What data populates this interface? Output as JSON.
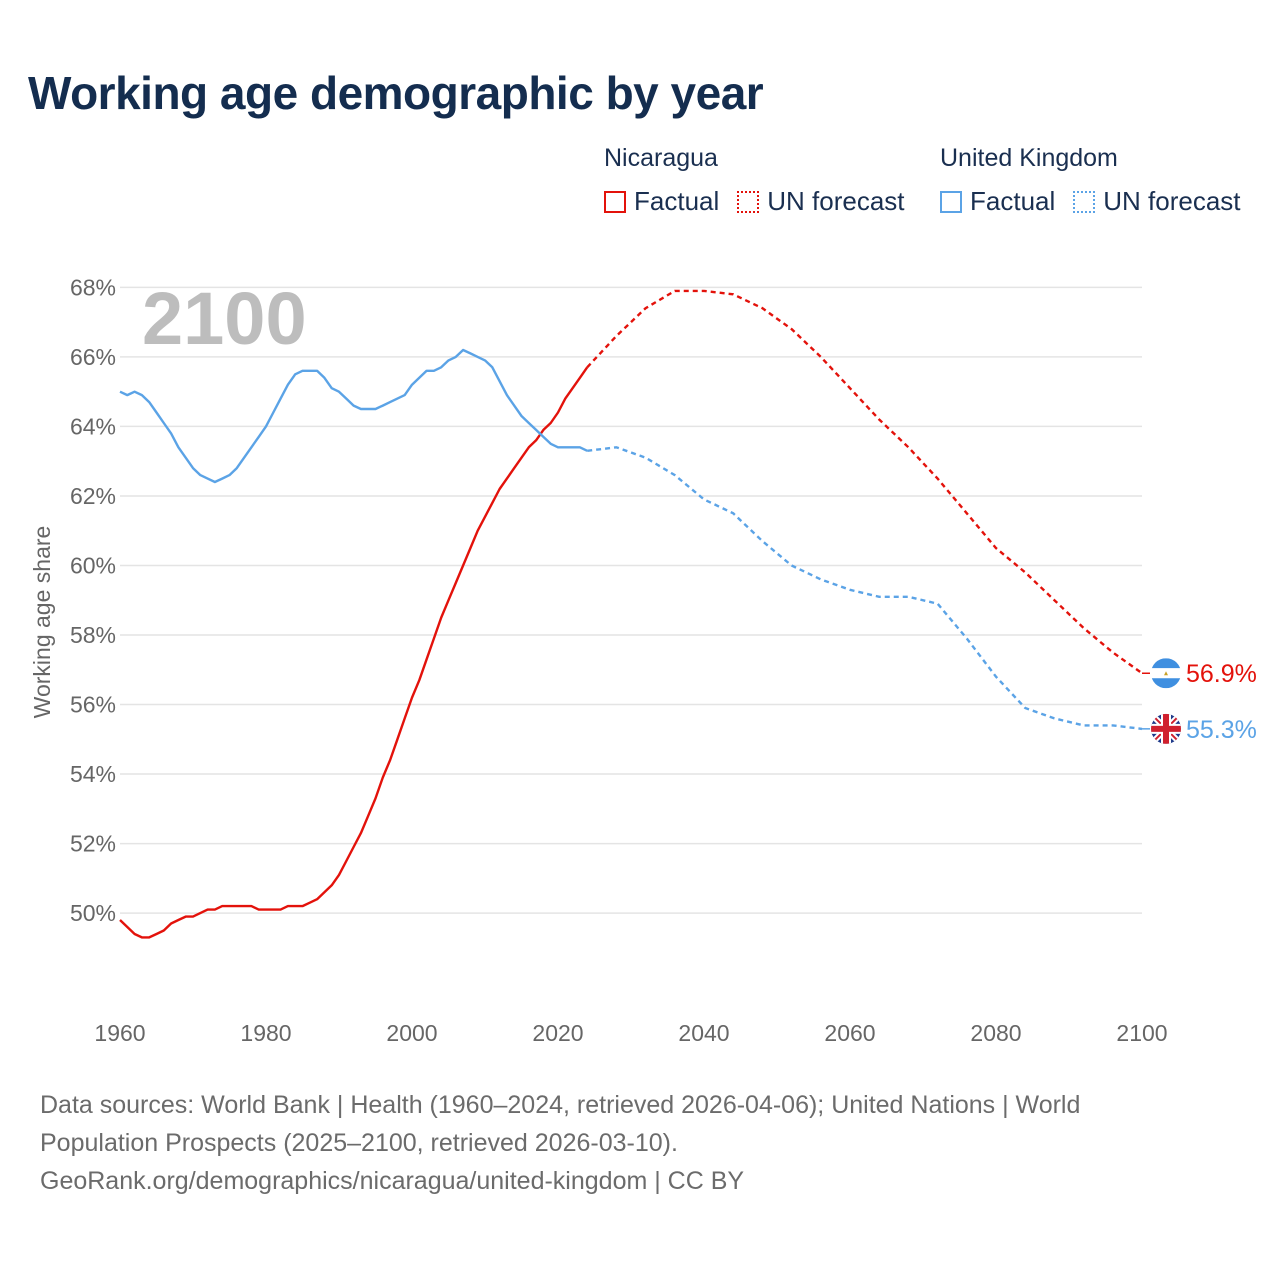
{
  "title": "Working age demographic by year",
  "legend": {
    "groups": [
      {
        "name": "Nicaragua",
        "factual_label": "Factual",
        "forecast_label": "UN forecast"
      },
      {
        "name": "United Kingdom",
        "factual_label": "Factual",
        "forecast_label": "UN forecast"
      }
    ]
  },
  "footer": {
    "line1": "Data sources: World Bank | Health (1960–2024, retrieved 2026-04-06); United Nations | World",
    "line2": "Population Prospects (2025–2100, retrieved 2026-03-10).",
    "line3": "GeoRank.org/demographics/nicaragua/united-kingdom | CC BY"
  },
  "colors": {
    "nicaragua": "#e3120b",
    "uk": "#5ba3e6",
    "grid": "#e4e4e4",
    "year_watermark": "#bdbdbd",
    "axis_text": "#666666"
  },
  "chart_data": {
    "type": "line",
    "year_label": "2100",
    "ylabel": "Working age share",
    "xlim": [
      1960,
      2100
    ],
    "ylim": [
      47.5,
      68.5
    ],
    "x_ticks": [
      1960,
      1980,
      2000,
      2020,
      2040,
      2060,
      2080,
      2100
    ],
    "x_tick_labels": [
      "1960",
      "1980",
      "2000",
      "2020",
      "2040",
      "2060",
      "2080",
      "2100"
    ],
    "y_ticks": [
      50,
      52,
      54,
      56,
      58,
      60,
      62,
      64,
      66,
      68
    ],
    "y_tick_labels": [
      "50%",
      "52%",
      "54%",
      "56%",
      "58%",
      "60%",
      "62%",
      "64%",
      "66%",
      "68%"
    ],
    "series": [
      {
        "name": "Nicaragua",
        "color": "#e3120b",
        "end_label": "56.9%",
        "flag": "nicaragua-flag-icon",
        "factual": {
          "x": [
            1960,
            1961,
            1962,
            1963,
            1964,
            1965,
            1966,
            1967,
            1968,
            1969,
            1970,
            1971,
            1972,
            1973,
            1974,
            1975,
            1976,
            1977,
            1978,
            1979,
            1980,
            1981,
            1982,
            1983,
            1984,
            1985,
            1986,
            1987,
            1988,
            1989,
            1990,
            1991,
            1992,
            1993,
            1994,
            1995,
            1996,
            1997,
            1998,
            1999,
            2000,
            2001,
            2002,
            2003,
            2004,
            2005,
            2006,
            2007,
            2008,
            2009,
            2010,
            2011,
            2012,
            2013,
            2014,
            2015,
            2016,
            2017,
            2018,
            2019,
            2020,
            2021,
            2022,
            2023,
            2024
          ],
          "y": [
            49.8,
            49.6,
            49.4,
            49.3,
            49.3,
            49.4,
            49.5,
            49.7,
            49.8,
            49.9,
            49.9,
            50.0,
            50.1,
            50.1,
            50.2,
            50.2,
            50.2,
            50.2,
            50.2,
            50.1,
            50.1,
            50.1,
            50.1,
            50.2,
            50.2,
            50.2,
            50.3,
            50.4,
            50.6,
            50.8,
            51.1,
            51.5,
            51.9,
            52.3,
            52.8,
            53.3,
            53.9,
            54.4,
            55.0,
            55.6,
            56.2,
            56.7,
            57.3,
            57.9,
            58.5,
            59.0,
            59.5,
            60.0,
            60.5,
            61.0,
            61.4,
            61.8,
            62.2,
            62.5,
            62.8,
            63.1,
            63.4,
            63.6,
            63.9,
            64.1,
            64.4,
            64.8,
            65.1,
            65.4,
            65.7
          ]
        },
        "forecast": {
          "x": [
            2024,
            2028,
            2032,
            2036,
            2040,
            2044,
            2048,
            2052,
            2056,
            2060,
            2064,
            2068,
            2072,
            2076,
            2080,
            2084,
            2088,
            2092,
            2096,
            2100
          ],
          "y": [
            65.7,
            66.6,
            67.4,
            67.9,
            67.9,
            67.8,
            67.4,
            66.8,
            66.0,
            65.1,
            64.2,
            63.4,
            62.5,
            61.5,
            60.5,
            59.8,
            59.0,
            58.2,
            57.5,
            56.9
          ]
        }
      },
      {
        "name": "United Kingdom",
        "color": "#5ba3e6",
        "end_label": "55.3%",
        "flag": "united-kingdom-flag-icon",
        "factual": {
          "x": [
            1960,
            1961,
            1962,
            1963,
            1964,
            1965,
            1966,
            1967,
            1968,
            1969,
            1970,
            1971,
            1972,
            1973,
            1974,
            1975,
            1976,
            1977,
            1978,
            1979,
            1980,
            1981,
            1982,
            1983,
            1984,
            1985,
            1986,
            1987,
            1988,
            1989,
            1990,
            1991,
            1992,
            1993,
            1994,
            1995,
            1996,
            1997,
            1998,
            1999,
            2000,
            2001,
            2002,
            2003,
            2004,
            2005,
            2006,
            2007,
            2008,
            2009,
            2010,
            2011,
            2012,
            2013,
            2014,
            2015,
            2016,
            2017,
            2018,
            2019,
            2020,
            2021,
            2022,
            2023,
            2024
          ],
          "y": [
            65.0,
            64.9,
            65.0,
            64.9,
            64.7,
            64.4,
            64.1,
            63.8,
            63.4,
            63.1,
            62.8,
            62.6,
            62.5,
            62.4,
            62.5,
            62.6,
            62.8,
            63.1,
            63.4,
            63.7,
            64.0,
            64.4,
            64.8,
            65.2,
            65.5,
            65.6,
            65.6,
            65.6,
            65.4,
            65.1,
            65.0,
            64.8,
            64.6,
            64.5,
            64.5,
            64.5,
            64.6,
            64.7,
            64.8,
            64.9,
            65.2,
            65.4,
            65.6,
            65.6,
            65.7,
            65.9,
            66.0,
            66.2,
            66.1,
            66.0,
            65.9,
            65.7,
            65.3,
            64.9,
            64.6,
            64.3,
            64.1,
            63.9,
            63.7,
            63.5,
            63.4,
            63.4,
            63.4,
            63.4,
            63.3
          ]
        },
        "forecast": {
          "x": [
            2024,
            2028,
            2032,
            2036,
            2040,
            2044,
            2048,
            2052,
            2056,
            2060,
            2064,
            2068,
            2072,
            2076,
            2080,
            2084,
            2088,
            2092,
            2096,
            2100
          ],
          "y": [
            63.3,
            63.4,
            63.1,
            62.6,
            61.9,
            61.5,
            60.7,
            60.0,
            59.6,
            59.3,
            59.1,
            59.1,
            58.9,
            57.9,
            56.8,
            55.9,
            55.6,
            55.4,
            55.4,
            55.3
          ]
        }
      }
    ]
  }
}
